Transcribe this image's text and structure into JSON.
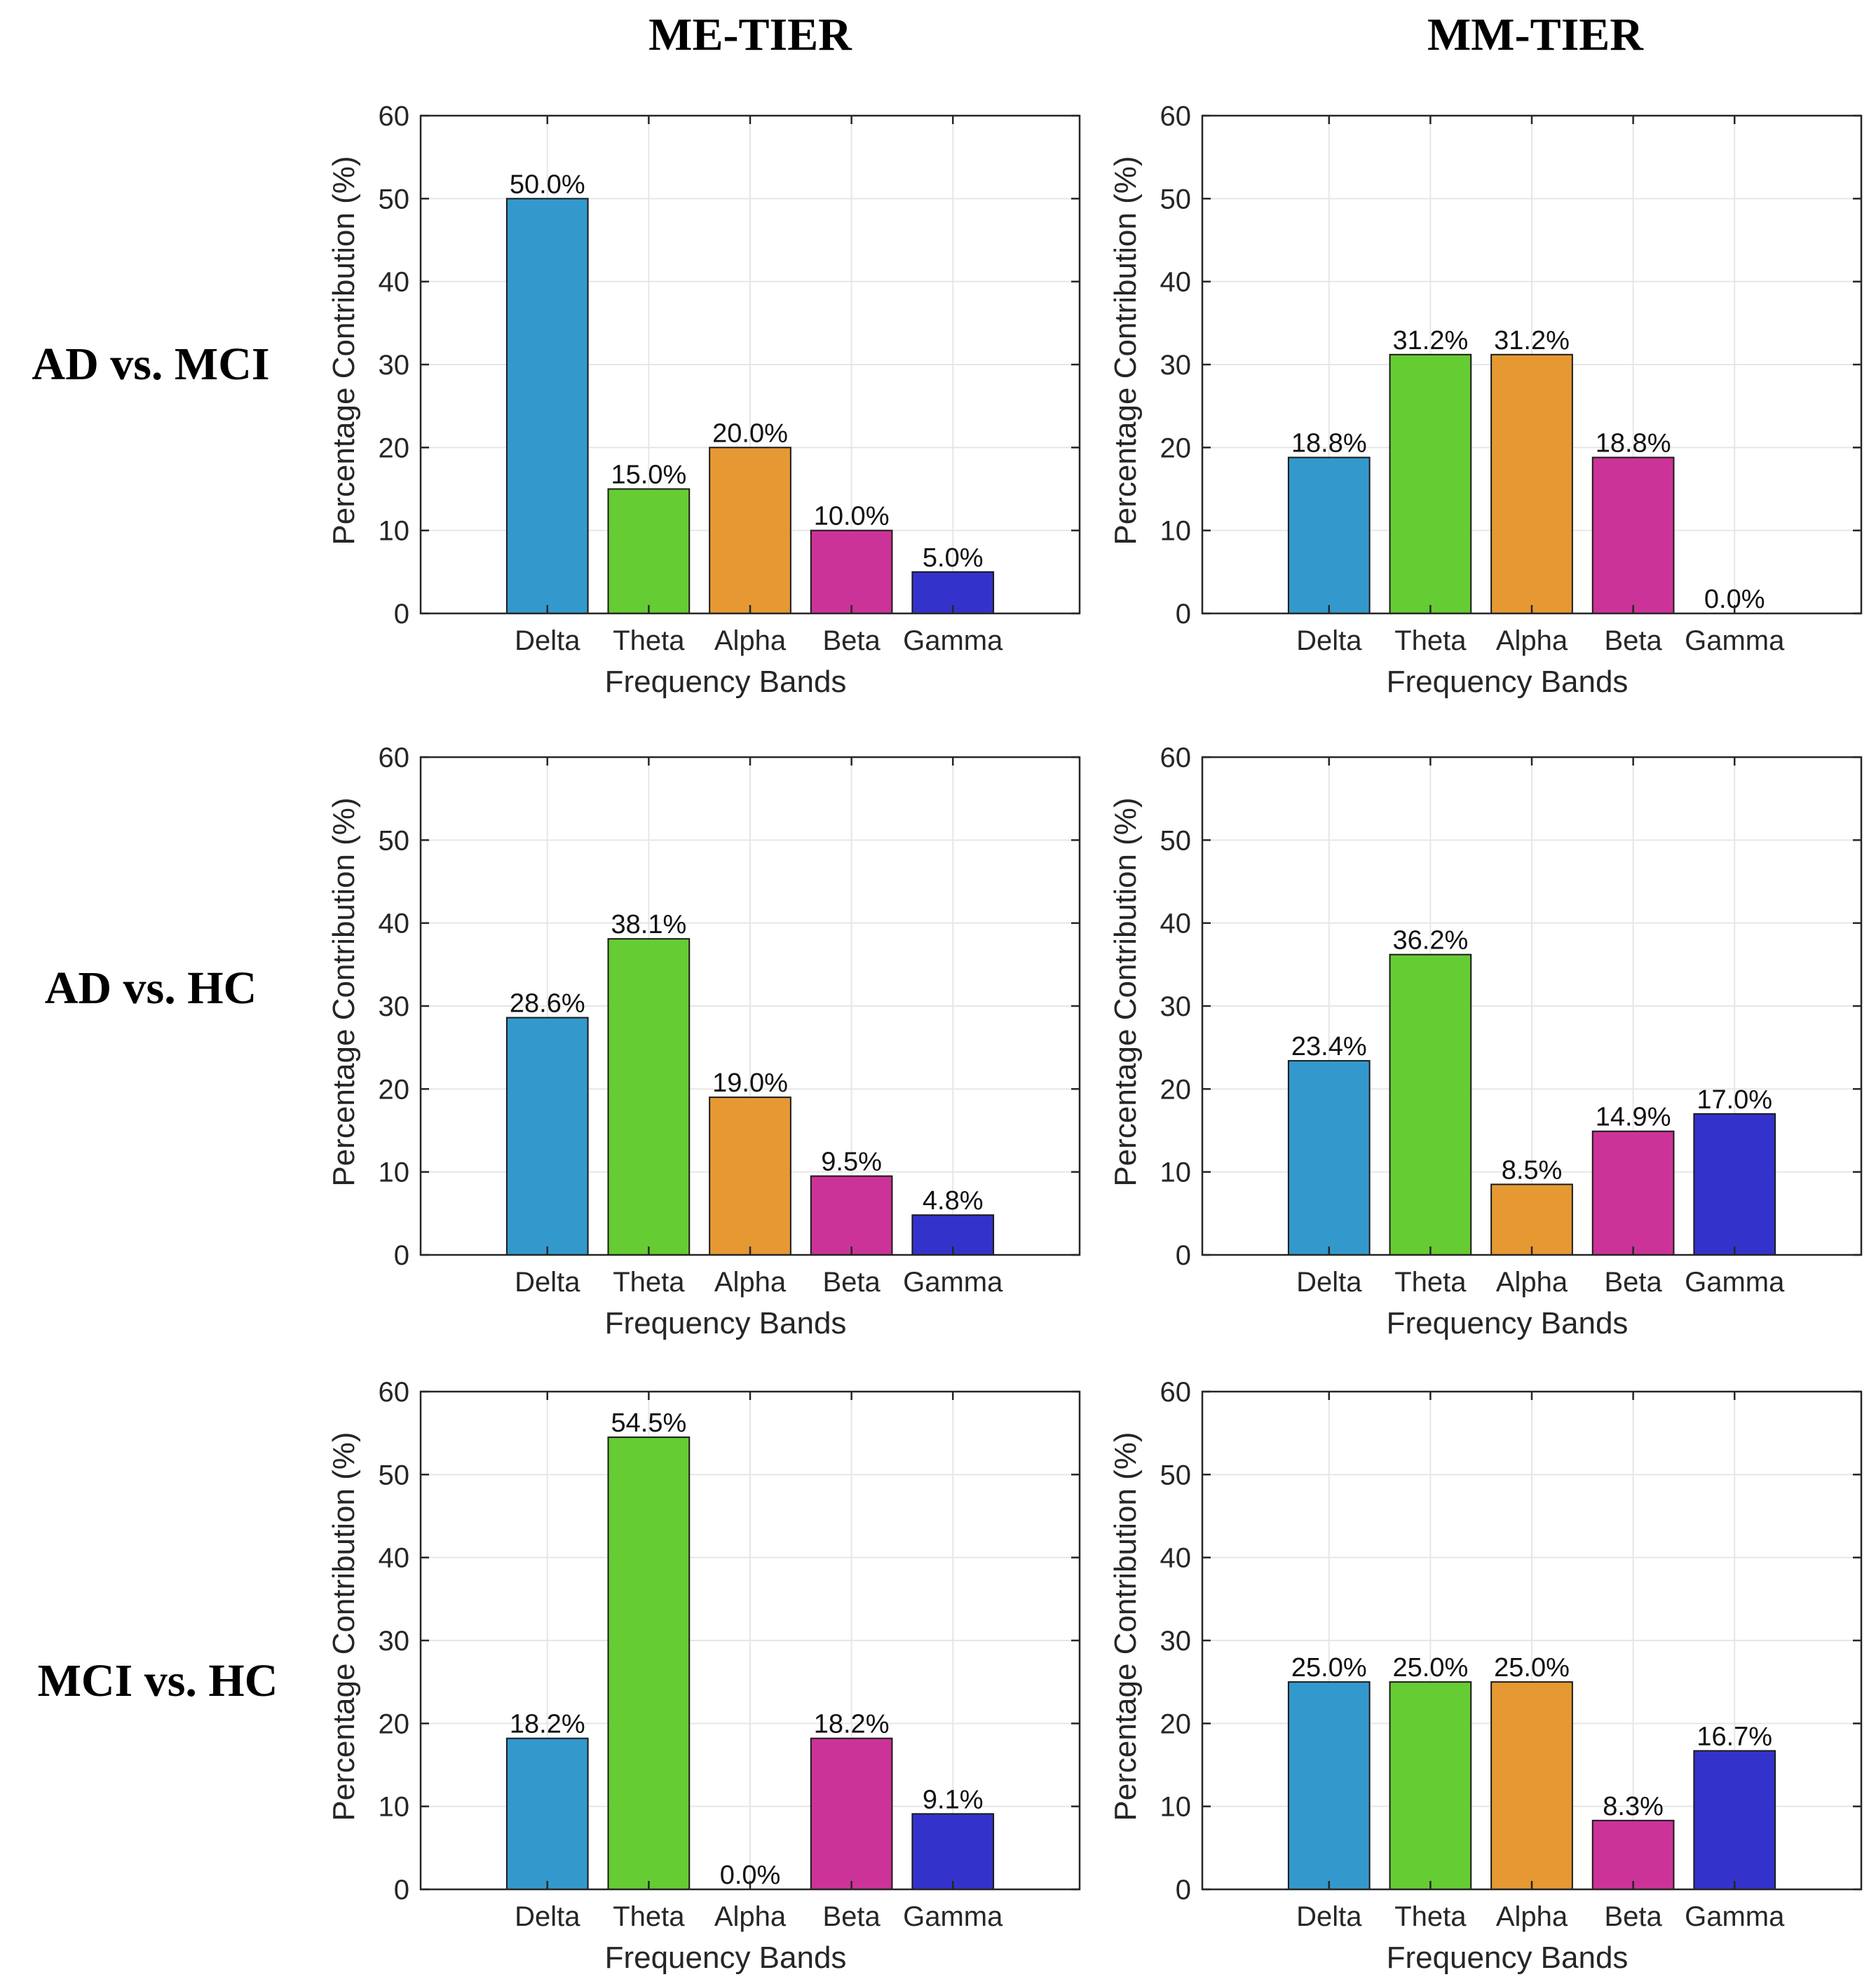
{
  "figure": {
    "columns": [
      "ME-TIER",
      "MM-TIER"
    ],
    "rows": [
      "AD vs. MCI",
      "AD vs. HC",
      "MCI vs. HC"
    ]
  },
  "colors": {
    "Delta": "#3399cc",
    "Theta": "#66cc33",
    "Alpha": "#e69933",
    "Beta": "#cc3399",
    "Gamma": "#3333cc",
    "grid": "#e6e6e6",
    "axes": "#262626"
  },
  "chart_data": [
    {
      "type": "bar",
      "panel": "ME-TIER / AD vs. MCI",
      "categories": [
        "Delta",
        "Theta",
        "Alpha",
        "Beta",
        "Gamma"
      ],
      "values": [
        50.0,
        15.0,
        20.0,
        10.0,
        5.0
      ],
      "labels": [
        "50.0%",
        "15.0%",
        "20.0%",
        "10.0%",
        "5.0%"
      ],
      "xlabel": "Frequency Bands",
      "ylabel": "Percentage Contribution (%)",
      "ylim": [
        0,
        60
      ],
      "yticks": [
        "0",
        "10",
        "20",
        "30",
        "40",
        "50",
        "60"
      ],
      "grid": true
    },
    {
      "type": "bar",
      "panel": "MM-TIER / AD vs. MCI",
      "categories": [
        "Delta",
        "Theta",
        "Alpha",
        "Beta",
        "Gamma"
      ],
      "values": [
        18.8,
        31.2,
        31.2,
        18.8,
        0.0
      ],
      "labels": [
        "18.8%",
        "31.2%",
        "31.2%",
        "18.8%",
        "0.0%"
      ],
      "xlabel": "Frequency Bands",
      "ylabel": "Percentage Contribution (%)",
      "ylim": [
        0,
        60
      ],
      "yticks": [
        "0",
        "10",
        "20",
        "30",
        "40",
        "50",
        "60"
      ],
      "grid": true
    },
    {
      "type": "bar",
      "panel": "ME-TIER / AD vs. HC",
      "categories": [
        "Delta",
        "Theta",
        "Alpha",
        "Beta",
        "Gamma"
      ],
      "values": [
        28.6,
        38.1,
        19.0,
        9.5,
        4.8
      ],
      "labels": [
        "28.6%",
        "38.1%",
        "19.0%",
        "9.5%",
        "4.8%"
      ],
      "xlabel": "Frequency Bands",
      "ylabel": "Percentage Contribution (%)",
      "ylim": [
        0,
        60
      ],
      "yticks": [
        "0",
        "10",
        "20",
        "30",
        "40",
        "50",
        "60"
      ],
      "grid": true
    },
    {
      "type": "bar",
      "panel": "MM-TIER / AD vs. HC",
      "categories": [
        "Delta",
        "Theta",
        "Alpha",
        "Beta",
        "Gamma"
      ],
      "values": [
        23.4,
        36.2,
        8.5,
        14.9,
        17.0
      ],
      "labels": [
        "23.4%",
        "36.2%",
        "8.5%",
        "14.9%",
        "17.0%"
      ],
      "xlabel": "Frequency Bands",
      "ylabel": "Percentage Contribution (%)",
      "ylim": [
        0,
        60
      ],
      "yticks": [
        "0",
        "10",
        "20",
        "30",
        "40",
        "50",
        "60"
      ],
      "grid": true
    },
    {
      "type": "bar",
      "panel": "ME-TIER / MCI vs. HC",
      "categories": [
        "Delta",
        "Theta",
        "Alpha",
        "Beta",
        "Gamma"
      ],
      "values": [
        18.2,
        54.5,
        0.0,
        18.2,
        9.1
      ],
      "labels": [
        "18.2%",
        "54.5%",
        "0.0%",
        "18.2%",
        "9.1%"
      ],
      "xlabel": "Frequency Bands",
      "ylabel": "Percentage Contribution (%)",
      "ylim": [
        0,
        60
      ],
      "yticks": [
        "0",
        "10",
        "20",
        "30",
        "40",
        "50",
        "60"
      ],
      "grid": true
    },
    {
      "type": "bar",
      "panel": "MM-TIER / MCI vs. HC",
      "categories": [
        "Delta",
        "Theta",
        "Alpha",
        "Beta",
        "Gamma"
      ],
      "values": [
        25.0,
        25.0,
        25.0,
        8.3,
        16.7
      ],
      "labels": [
        "25.0%",
        "25.0%",
        "25.0%",
        "8.3%",
        "16.7%"
      ],
      "xlabel": "Frequency Bands",
      "ylabel": "Percentage Contribution (%)",
      "ylim": [
        0,
        60
      ],
      "yticks": [
        "0",
        "10",
        "20",
        "30",
        "40",
        "50",
        "60"
      ],
      "grid": true
    }
  ]
}
